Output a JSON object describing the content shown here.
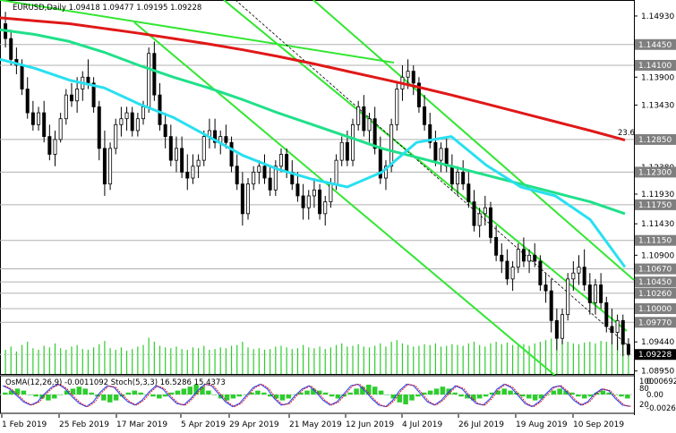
{
  "chart_data": {
    "type": "candlestick",
    "symbol_info": "EURUSD,Daily  1.09418 1.09477 1.09195 1.09228",
    "ylim": [
      1.089,
      1.152
    ],
    "y_ticks": [
      "1.14930",
      "1.13900",
      "1.13430",
      "1.12380",
      "1.11930",
      "1.11430",
      "1.10900",
      "1.09440",
      "1.08950"
    ],
    "levels": [
      {
        "label": "1.14450",
        "value": 1.1445
      },
      {
        "label": "1.14100",
        "value": 1.141
      },
      {
        "label": "1.12850",
        "value": 1.1285
      },
      {
        "label": "1.12300",
        "value": 1.123
      },
      {
        "label": "1.11750",
        "value": 1.1175
      },
      {
        "label": "1.11150",
        "value": 1.1115
      },
      {
        "label": "1.10670",
        "value": 1.1067
      },
      {
        "label": "1.10450",
        "value": 1.1045
      },
      {
        "label": "1.10260",
        "value": 1.1026
      },
      {
        "label": "1.10000",
        "value": 1.1
      },
      {
        "label": "1.09770",
        "value": 1.0977
      }
    ],
    "current_price": {
      "label": "1.09228",
      "value": 1.09228
    },
    "fib_label": "23.6",
    "x_labels": [
      "1 Feb 2019",
      "25 Feb 2019",
      "17 Mar 2019",
      "5 Apr 2019",
      "29 Apr 2019",
      "21 May 2019",
      "12 Jun 2019",
      "4 Jul 2019",
      "26 Jul 2019",
      "19 Aug 2019",
      "10 Sep 2019"
    ],
    "ohlc": [
      [
        1.148,
        1.15,
        1.144,
        1.1455
      ],
      [
        1.1455,
        1.147,
        1.141,
        1.142
      ],
      [
        1.142,
        1.144,
        1.1395,
        1.141
      ],
      [
        1.141,
        1.142,
        1.136,
        1.137
      ],
      [
        1.137,
        1.139,
        1.132,
        1.133
      ],
      [
        1.133,
        1.135,
        1.13,
        1.131
      ],
      [
        1.131,
        1.134,
        1.13,
        1.133
      ],
      [
        1.133,
        1.135,
        1.128,
        1.129
      ],
      [
        1.129,
        1.131,
        1.125,
        1.126
      ],
      [
        1.126,
        1.13,
        1.124,
        1.1285
      ],
      [
        1.1285,
        1.133,
        1.128,
        1.132
      ],
      [
        1.132,
        1.137,
        1.131,
        1.136
      ],
      [
        1.136,
        1.138,
        1.134,
        1.135
      ],
      [
        1.135,
        1.139,
        1.133,
        1.137
      ],
      [
        1.137,
        1.14,
        1.135,
        1.139
      ],
      [
        1.139,
        1.142,
        1.137,
        1.138
      ],
      [
        1.138,
        1.139,
        1.133,
        1.134
      ],
      [
        1.134,
        1.135,
        1.125,
        1.127
      ],
      [
        1.127,
        1.13,
        1.119,
        1.121
      ],
      [
        1.121,
        1.128,
        1.12,
        1.127
      ],
      [
        1.127,
        1.132,
        1.126,
        1.131
      ],
      [
        1.131,
        1.134,
        1.129,
        1.132
      ],
      [
        1.132,
        1.134,
        1.13,
        1.133
      ],
      [
        1.133,
        1.134,
        1.129,
        1.13
      ],
      [
        1.13,
        1.133,
        1.129,
        1.132
      ],
      [
        1.132,
        1.135,
        1.131,
        1.134
      ],
      [
        1.134,
        1.144,
        1.133,
        1.143
      ],
      [
        1.143,
        1.145,
        1.135,
        1.136
      ],
      [
        1.136,
        1.138,
        1.13,
        1.131
      ],
      [
        1.131,
        1.133,
        1.127,
        1.129
      ],
      [
        1.129,
        1.131,
        1.124,
        1.125
      ],
      [
        1.125,
        1.129,
        1.123,
        1.127
      ],
      [
        1.127,
        1.129,
        1.122,
        1.123
      ],
      [
        1.123,
        1.126,
        1.12,
        1.122
      ],
      [
        1.122,
        1.126,
        1.121,
        1.124
      ],
      [
        1.124,
        1.126,
        1.122,
        1.125
      ],
      [
        1.125,
        1.13,
        1.124,
        1.129
      ],
      [
        1.129,
        1.132,
        1.127,
        1.13
      ],
      [
        1.13,
        1.132,
        1.127,
        1.128
      ],
      [
        1.128,
        1.13,
        1.126,
        1.129
      ],
      [
        1.129,
        1.131,
        1.127,
        1.128
      ],
      [
        1.128,
        1.129,
        1.123,
        1.124
      ],
      [
        1.124,
        1.126,
        1.12,
        1.121
      ],
      [
        1.121,
        1.123,
        1.114,
        1.116
      ],
      [
        1.116,
        1.122,
        1.115,
        1.121
      ],
      [
        1.121,
        1.124,
        1.12,
        1.123
      ],
      [
        1.123,
        1.125,
        1.121,
        1.124
      ],
      [
        1.124,
        1.126,
        1.121,
        1.122
      ],
      [
        1.122,
        1.124,
        1.119,
        1.12
      ],
      [
        1.12,
        1.125,
        1.119,
        1.124
      ],
      [
        1.124,
        1.127,
        1.123,
        1.126
      ],
      [
        1.126,
        1.127,
        1.122,
        1.123
      ],
      [
        1.123,
        1.125,
        1.12,
        1.121
      ],
      [
        1.121,
        1.123,
        1.118,
        1.119
      ],
      [
        1.119,
        1.121,
        1.115,
        1.117
      ],
      [
        1.117,
        1.12,
        1.115,
        1.119
      ],
      [
        1.119,
        1.122,
        1.117,
        1.12
      ],
      [
        1.12,
        1.121,
        1.115,
        1.116
      ],
      [
        1.116,
        1.119,
        1.114,
        1.118
      ],
      [
        1.118,
        1.122,
        1.117,
        1.121
      ],
      [
        1.121,
        1.126,
        1.12,
        1.125
      ],
      [
        1.125,
        1.129,
        1.124,
        1.128
      ],
      [
        1.128,
        1.13,
        1.124,
        1.125
      ],
      [
        1.125,
        1.132,
        1.124,
        1.131
      ],
      [
        1.131,
        1.135,
        1.13,
        1.134
      ],
      [
        1.134,
        1.136,
        1.129,
        1.13
      ],
      [
        1.13,
        1.133,
        1.128,
        1.132
      ],
      [
        1.132,
        1.134,
        1.126,
        1.127
      ],
      [
        1.127,
        1.129,
        1.121,
        1.122
      ],
      [
        1.122,
        1.125,
        1.12,
        1.124
      ],
      [
        1.124,
        1.132,
        1.123,
        1.131
      ],
      [
        1.131,
        1.138,
        1.13,
        1.137
      ],
      [
        1.137,
        1.141,
        1.135,
        1.139
      ],
      [
        1.139,
        1.142,
        1.137,
        1.14
      ],
      [
        1.14,
        1.141,
        1.136,
        1.138
      ],
      [
        1.138,
        1.139,
        1.133,
        1.134
      ],
      [
        1.134,
        1.136,
        1.13,
        1.131
      ],
      [
        1.131,
        1.133,
        1.127,
        1.128
      ],
      [
        1.128,
        1.13,
        1.124,
        1.125
      ],
      [
        1.125,
        1.128,
        1.123,
        1.127
      ],
      [
        1.127,
        1.129,
        1.123,
        1.124
      ],
      [
        1.124,
        1.126,
        1.12,
        1.121
      ],
      [
        1.121,
        1.124,
        1.119,
        1.123
      ],
      [
        1.123,
        1.125,
        1.12,
        1.121
      ],
      [
        1.121,
        1.123,
        1.117,
        1.118
      ],
      [
        1.118,
        1.12,
        1.113,
        1.114
      ],
      [
        1.114,
        1.117,
        1.112,
        1.116
      ],
      [
        1.116,
        1.119,
        1.114,
        1.117
      ],
      [
        1.117,
        1.118,
        1.111,
        1.112
      ],
      [
        1.112,
        1.114,
        1.108,
        1.109
      ],
      [
        1.109,
        1.111,
        1.106,
        1.108
      ],
      [
        1.108,
        1.11,
        1.104,
        1.105
      ],
      [
        1.105,
        1.108,
        1.103,
        1.107
      ],
      [
        1.107,
        1.111,
        1.106,
        1.11
      ],
      [
        1.11,
        1.112,
        1.107,
        1.108
      ],
      [
        1.108,
        1.11,
        1.106,
        1.109
      ],
      [
        1.109,
        1.111,
        1.107,
        1.108
      ],
      [
        1.108,
        1.109,
        1.103,
        1.104
      ],
      [
        1.104,
        1.106,
        1.101,
        1.103
      ],
      [
        1.103,
        1.105,
        1.096,
        1.098
      ],
      [
        1.098,
        1.1,
        1.093,
        1.095
      ],
      [
        1.095,
        1.1,
        1.094,
        1.099
      ],
      [
        1.099,
        1.106,
        1.098,
        1.105
      ],
      [
        1.105,
        1.108,
        1.103,
        1.106
      ],
      [
        1.106,
        1.109,
        1.104,
        1.107
      ],
      [
        1.107,
        1.11,
        1.103,
        1.104
      ],
      [
        1.104,
        1.106,
        1.099,
        1.101
      ],
      [
        1.101,
        1.105,
        1.099,
        1.104
      ],
      [
        1.104,
        1.106,
        1.1,
        1.101
      ],
      [
        1.101,
        1.102,
        1.096,
        1.097
      ],
      [
        1.097,
        1.1,
        1.094,
        1.096
      ],
      [
        1.096,
        1.099,
        1.093,
        1.098
      ],
      [
        1.098,
        1.099,
        1.092,
        1.094
      ],
      [
        1.094,
        1.095,
        1.092,
        1.0923
      ]
    ],
    "volume": [
      30,
      34,
      28,
      36,
      40,
      32,
      30,
      35,
      33,
      38,
      32,
      30,
      34,
      36,
      31,
      30,
      33,
      37,
      41,
      32,
      30,
      33,
      29,
      31,
      34,
      36,
      45,
      40,
      35,
      33,
      32,
      34,
      31,
      30,
      33,
      32,
      35,
      30,
      31,
      33,
      32,
      35,
      36,
      40,
      33,
      31,
      32,
      30,
      31,
      34,
      35,
      33,
      31,
      32,
      36,
      33,
      32,
      34,
      31,
      33,
      36,
      38,
      34,
      35,
      37,
      34,
      33,
      35,
      38,
      34,
      40,
      42,
      38,
      36,
      34,
      35,
      37,
      36,
      38,
      34,
      35,
      37,
      36,
      35,
      38,
      40,
      36,
      34,
      38,
      40,
      37,
      39,
      36,
      35,
      37,
      35,
      38,
      40,
      42,
      44,
      43,
      41,
      40,
      38,
      37,
      39,
      40,
      38,
      41,
      40,
      39,
      42,
      38,
      34
    ],
    "sma_red": [
      1.149,
      1.1485,
      1.148,
      1.1472,
      1.1464,
      1.1455,
      1.1446,
      1.1436,
      1.1425,
      1.1413,
      1.14,
      1.1387,
      1.1374,
      1.136,
      1.1345,
      1.133,
      1.1315,
      1.13,
      1.1284
    ],
    "sma_green": [
      1.147,
      1.1462,
      1.145,
      1.1432,
      1.141,
      1.139,
      1.1372,
      1.1352,
      1.133,
      1.131,
      1.129,
      1.127,
      1.1255,
      1.124,
      1.1225,
      1.121,
      1.1195,
      1.118,
      1.116
    ],
    "sma_cyan": [
      1.142,
      1.1405,
      1.1385,
      1.1372,
      1.1345,
      1.1322,
      1.129,
      1.1258,
      1.1235,
      1.1218,
      1.1205,
      1.123,
      1.128,
      1.129,
      1.1242,
      1.1205,
      1.119,
      1.115,
      1.107
    ],
    "oscillator": {
      "label": "OsMA(12,26,9) -0.0011092  Stoch(5,3,3) 16.5286 15.4373",
      "ticks": [
        "0.006924",
        "0.00",
        "-0.002609",
        "100",
        "80",
        "20"
      ],
      "osma": [
        1,
        2,
        3,
        2,
        0,
        -1,
        -2,
        -3,
        -2,
        0,
        2,
        3,
        4,
        3,
        1,
        -1,
        -3,
        -4,
        -3,
        -1,
        1,
        2,
        1,
        0,
        -1,
        -2,
        -1,
        1,
        2,
        3,
        4,
        5,
        4,
        2,
        0,
        -2,
        -3,
        -2,
        -1,
        0,
        1,
        2,
        1,
        -1,
        -2,
        -3,
        -2,
        0,
        1,
        2,
        3,
        2,
        1,
        -1,
        -2,
        -1,
        1,
        3,
        4,
        5,
        4,
        2,
        0,
        -2,
        -4,
        -5,
        -3,
        -1,
        1,
        2,
        3,
        4,
        3,
        1,
        -1,
        -2,
        -3,
        -2,
        -1,
        1,
        2,
        3,
        2,
        1,
        -1,
        -2,
        -3,
        -2,
        0,
        2,
        3,
        2,
        1,
        -1,
        -2,
        -1,
        1,
        2,
        1,
        0,
        -1,
        -2
      ],
      "stoch": [
        80,
        70,
        50,
        30,
        20,
        30,
        55,
        75,
        85,
        70,
        45,
        25,
        15,
        30,
        60,
        80,
        75,
        50,
        30,
        20,
        35,
        60,
        80,
        70,
        45,
        25,
        20,
        40,
        65,
        85,
        80,
        55,
        30,
        15,
        25,
        50,
        75,
        85,
        70,
        40,
        20,
        25,
        50,
        70,
        80,
        60,
        35,
        20,
        30,
        55,
        80,
        85,
        65,
        40,
        20,
        15,
        35,
        65,
        85,
        80,
        55,
        30,
        20,
        35,
        60,
        80,
        70,
        45,
        25,
        20,
        40,
        70,
        85,
        75,
        50,
        25,
        15,
        30,
        55,
        75,
        80,
        60,
        35,
        20,
        30,
        55,
        70,
        65,
        40,
        20,
        16
      ]
    }
  }
}
